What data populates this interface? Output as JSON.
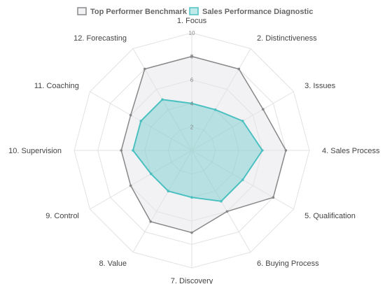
{
  "chart_data": {
    "type": "radar",
    "categories": [
      "1. Focus",
      "2. Distinctiveness",
      "3. Issues",
      "4. Sales Process",
      "5. Qualification",
      "6. Buying Process",
      "7. Discovery",
      "8. Value",
      "9. Control",
      "10. Supervision",
      "11. Coaching",
      "12. Forecasting"
    ],
    "series": [
      {
        "name": "Top Performer Benchmark",
        "values": [
          8,
          8,
          7,
          8,
          8,
          6,
          7,
          7,
          6,
          6,
          6,
          8
        ],
        "line_color": "#888888",
        "fill_color": "#e3e3e7"
      },
      {
        "name": "Sales Performance Diagnostic",
        "values": [
          4,
          4,
          5,
          6,
          5,
          5,
          4,
          4,
          4,
          5,
          5,
          5
        ],
        "line_color": "#4bc0c0",
        "fill_color": "#4bc0c0"
      }
    ],
    "r_ticks": [
      "2",
      "4",
      "6",
      "8",
      "10"
    ],
    "r_max": 10,
    "grid": true,
    "legend_position": "top"
  }
}
